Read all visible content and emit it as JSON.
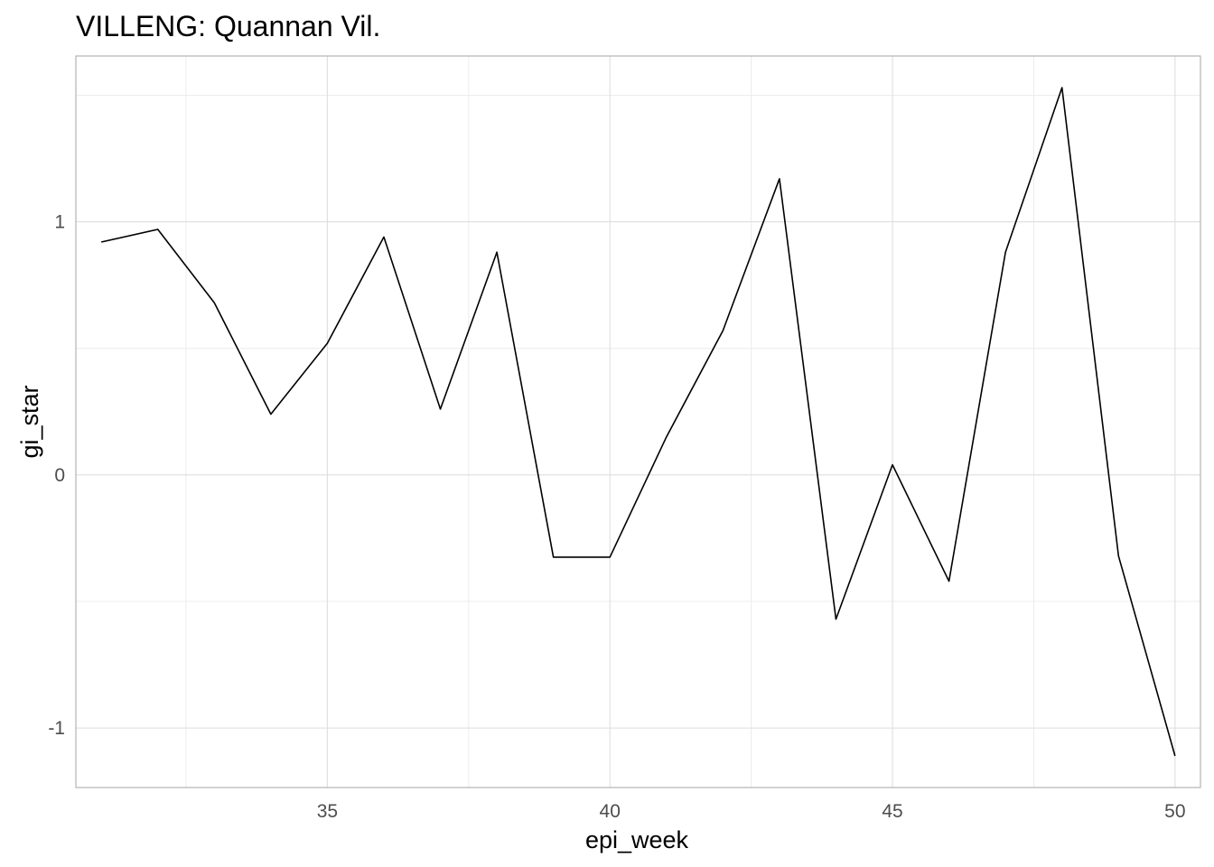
{
  "chart_data": {
    "type": "line",
    "title": "VILLENG: Quannan Vil.",
    "xlabel": "epi_week",
    "ylabel": "gi_star",
    "x_ticks": [
      35,
      40,
      45,
      50
    ],
    "y_ticks": [
      -1,
      0,
      1
    ],
    "y_tick_labels": [
      "-1",
      "0",
      "1"
    ],
    "xlim": [
      30.55,
      50.45
    ],
    "ylim": [
      -1.235,
      1.655
    ],
    "grid": true,
    "legend": "none",
    "series": [
      {
        "color": "#000000",
        "x": [
          31,
          32,
          33,
          34,
          35,
          36,
          37,
          38,
          39,
          40,
          41,
          42,
          43,
          44,
          45,
          46,
          47,
          48,
          49,
          50
        ],
        "y": [
          0.92,
          0.97,
          0.68,
          0.24,
          0.52,
          0.94,
          0.26,
          0.88,
          -0.325,
          -0.325,
          0.15,
          0.57,
          1.17,
          -0.57,
          0.04,
          -0.42,
          0.88,
          1.53,
          -0.32,
          -1.11
        ]
      }
    ]
  }
}
